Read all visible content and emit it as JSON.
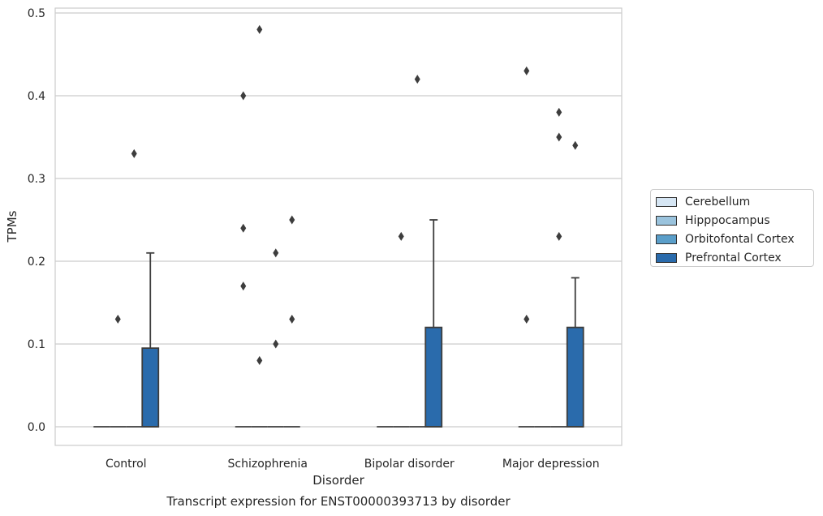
{
  "chart_data": {
    "type": "box",
    "xlabel": "Disorder",
    "ylabel": "TPMs",
    "caption": "Transcript expression for ENST00000393713 by disorder",
    "ylim": [
      -0.023,
      0.505
    ],
    "yticks": [
      "0.0",
      "0.1",
      "0.2",
      "0.3",
      "0.4",
      "0.5"
    ],
    "grid": true,
    "legend_position": "right",
    "categories": [
      "Control",
      "Schizophrenia",
      "Bipolar disorder",
      "Major depression"
    ],
    "series": [
      {
        "name": "Cerebellum",
        "color": "#d6e6f4",
        "boxes": [
          {
            "q1": 0,
            "median": 0,
            "q3": 0,
            "whisker_low": 0,
            "whisker_high": 0,
            "outliers": []
          },
          {
            "q1": 0,
            "median": 0,
            "q3": 0,
            "whisker_low": 0,
            "whisker_high": 0,
            "outliers": [
              0.24,
              0.17,
              0.4
            ]
          },
          {
            "q1": 0,
            "median": 0,
            "q3": 0,
            "whisker_low": 0,
            "whisker_high": 0,
            "outliers": []
          },
          {
            "q1": 0,
            "median": 0,
            "q3": 0,
            "whisker_low": 0,
            "whisker_high": 0,
            "outliers": [
              0.43,
              0.13
            ]
          }
        ]
      },
      {
        "name": "Hipppocampus",
        "color": "#9ac3dd",
        "boxes": [
          {
            "q1": 0,
            "median": 0,
            "q3": 0,
            "whisker_low": 0,
            "whisker_high": 0,
            "outliers": [
              0.13
            ]
          },
          {
            "q1": 0,
            "median": 0,
            "q3": 0,
            "whisker_low": 0,
            "whisker_high": 0,
            "outliers": [
              0.48,
              0.08
            ]
          },
          {
            "q1": 0,
            "median": 0,
            "q3": 0,
            "whisker_low": 0,
            "whisker_high": 0,
            "outliers": [
              0.23
            ]
          },
          {
            "q1": 0,
            "median": 0,
            "q3": 0,
            "whisker_low": 0,
            "whisker_high": 0,
            "outliers": []
          }
        ]
      },
      {
        "name": "Orbitofontal Cortex",
        "color": "#5a9ec9",
        "boxes": [
          {
            "q1": 0,
            "median": 0,
            "q3": 0,
            "whisker_low": 0,
            "whisker_high": 0,
            "outliers": [
              0.33
            ]
          },
          {
            "q1": 0,
            "median": 0,
            "q3": 0,
            "whisker_low": 0,
            "whisker_high": 0,
            "outliers": [
              0.21,
              0.1
            ]
          },
          {
            "q1": 0,
            "median": 0,
            "q3": 0,
            "whisker_low": 0,
            "whisker_high": 0,
            "outliers": [
              0.42
            ]
          },
          {
            "q1": 0,
            "median": 0,
            "q3": 0,
            "whisker_low": 0,
            "whisker_high": 0,
            "outliers": [
              0.38,
              0.35,
              0.23
            ]
          }
        ]
      },
      {
        "name": "Prefrontal Cortex",
        "color": "#2a6bac",
        "boxes": [
          {
            "q1": 0,
            "median": 0,
            "q3": 0.095,
            "whisker_low": 0,
            "whisker_high": 0.21,
            "outliers": []
          },
          {
            "q1": 0,
            "median": 0,
            "q3": 0,
            "whisker_low": 0,
            "whisker_high": 0,
            "outliers": [
              0.25,
              0.13
            ]
          },
          {
            "q1": 0,
            "median": 0,
            "q3": 0.12,
            "whisker_low": 0,
            "whisker_high": 0.25,
            "outliers": []
          },
          {
            "q1": 0,
            "median": 0,
            "q3": 0.12,
            "whisker_low": 0,
            "whisker_high": 0.18,
            "outliers": [
              0.34
            ]
          }
        ]
      }
    ]
  }
}
